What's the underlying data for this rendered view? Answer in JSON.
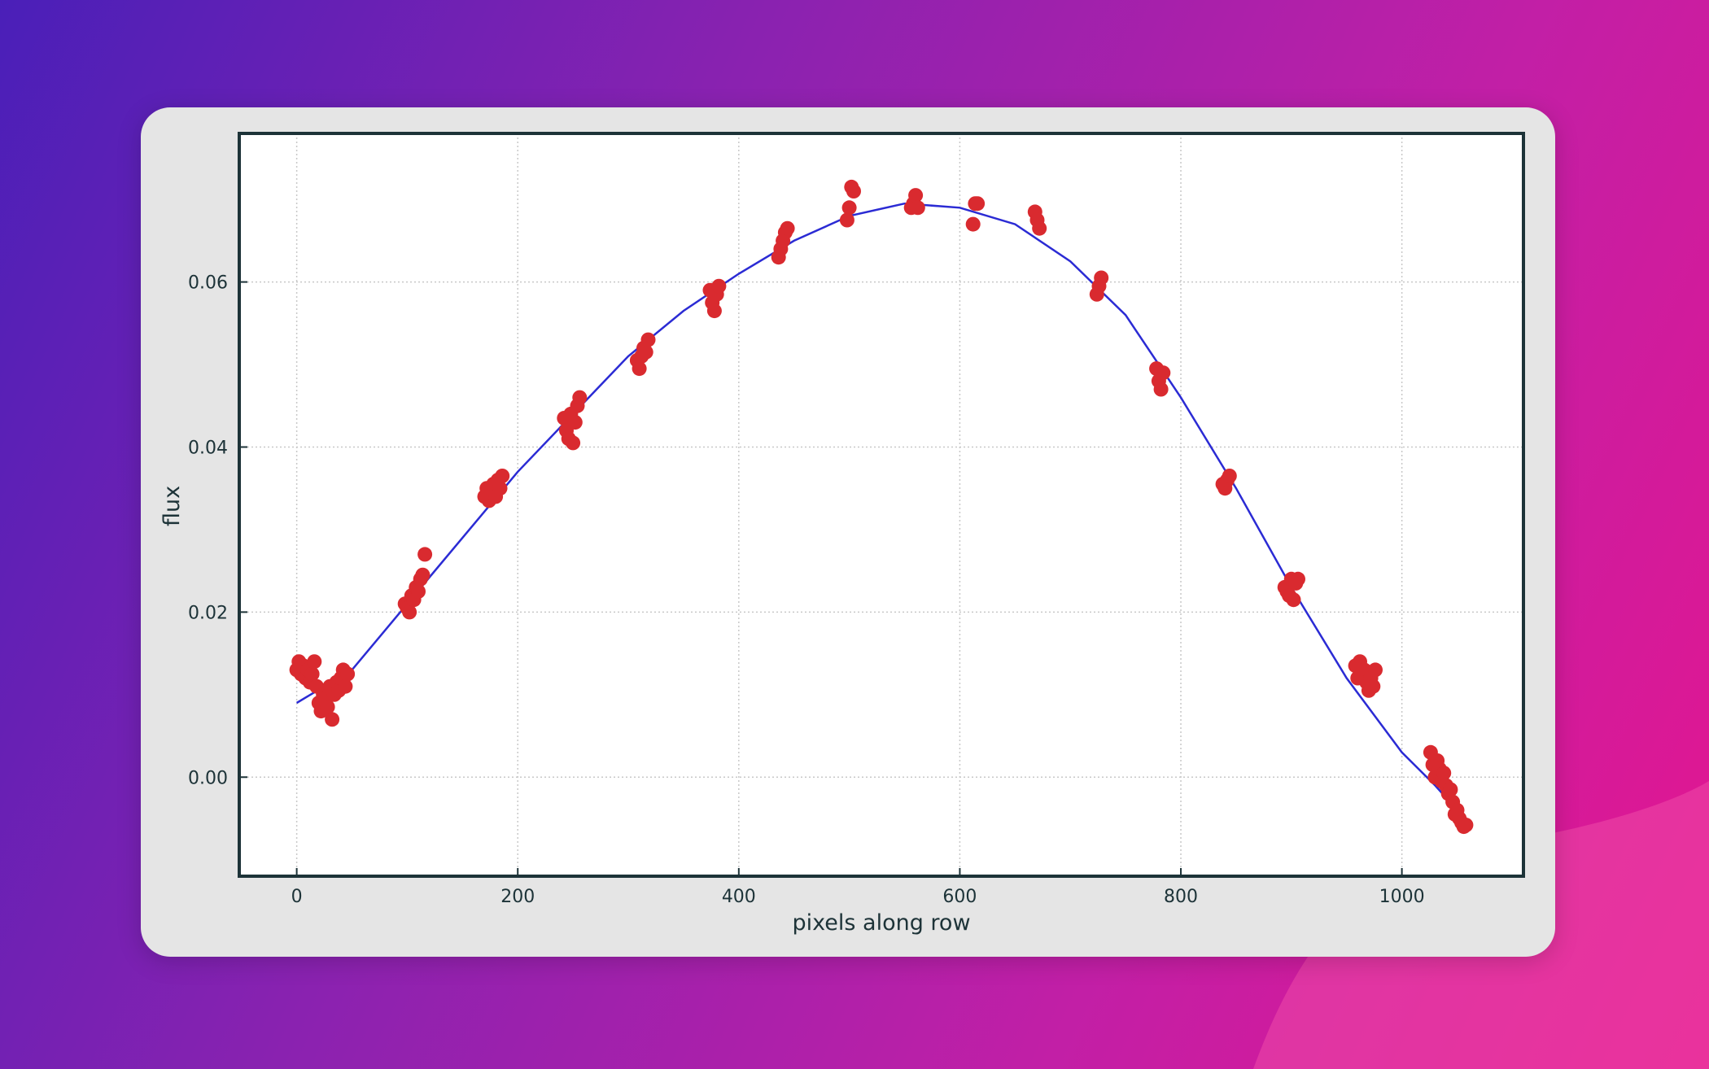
{
  "chart_data": {
    "type": "scatter",
    "title": "",
    "xlabel": "pixels along row",
    "ylabel": "flux",
    "xlim": [
      -52,
      1110
    ],
    "ylim": [
      -0.012,
      0.078
    ],
    "xticks": [
      0,
      200,
      400,
      600,
      800,
      1000
    ],
    "yticks": [
      0.0,
      0.02,
      0.04,
      0.06
    ],
    "xtick_labels": [
      "0",
      "200",
      "400",
      "600",
      "800",
      "1000"
    ],
    "ytick_labels": [
      "0.00",
      "0.02",
      "0.04",
      "0.06"
    ],
    "grid": true,
    "legend": "none",
    "colors": {
      "points": "#d92a2f",
      "fit": "#2b2bd4",
      "frame": "#1d3338",
      "grid": "#c8c8c8"
    },
    "series": [
      {
        "kind": "scatter",
        "points": [
          [
            0,
            0.013
          ],
          [
            2,
            0.014
          ],
          [
            4,
            0.0125
          ],
          [
            6,
            0.0135
          ],
          [
            8,
            0.012
          ],
          [
            10,
            0.013
          ],
          [
            12,
            0.0115
          ],
          [
            14,
            0.0125
          ],
          [
            16,
            0.014
          ],
          [
            18,
            0.011
          ],
          [
            20,
            0.009
          ],
          [
            22,
            0.008
          ],
          [
            24,
            0.01
          ],
          [
            26,
            0.0095
          ],
          [
            28,
            0.0085
          ],
          [
            30,
            0.011
          ],
          [
            32,
            0.007
          ],
          [
            34,
            0.01
          ],
          [
            36,
            0.0115
          ],
          [
            38,
            0.0105
          ],
          [
            40,
            0.012
          ],
          [
            42,
            0.013
          ],
          [
            44,
            0.011
          ],
          [
            46,
            0.0125
          ],
          [
            98,
            0.021
          ],
          [
            100,
            0.0205
          ],
          [
            102,
            0.02
          ],
          [
            104,
            0.022
          ],
          [
            106,
            0.0215
          ],
          [
            108,
            0.023
          ],
          [
            110,
            0.0225
          ],
          [
            112,
            0.024
          ],
          [
            114,
            0.0245
          ],
          [
            116,
            0.027
          ],
          [
            170,
            0.034
          ],
          [
            172,
            0.035
          ],
          [
            174,
            0.0335
          ],
          [
            176,
            0.0345
          ],
          [
            178,
            0.0355
          ],
          [
            180,
            0.034
          ],
          [
            182,
            0.036
          ],
          [
            184,
            0.035
          ],
          [
            186,
            0.0365
          ],
          [
            242,
            0.0435
          ],
          [
            244,
            0.042
          ],
          [
            246,
            0.041
          ],
          [
            248,
            0.044
          ],
          [
            250,
            0.0405
          ],
          [
            252,
            0.043
          ],
          [
            254,
            0.045
          ],
          [
            256,
            0.046
          ],
          [
            308,
            0.0505
          ],
          [
            310,
            0.0495
          ],
          [
            312,
            0.051
          ],
          [
            314,
            0.052
          ],
          [
            316,
            0.0515
          ],
          [
            318,
            0.053
          ],
          [
            374,
            0.059
          ],
          [
            376,
            0.0575
          ],
          [
            378,
            0.0565
          ],
          [
            380,
            0.0585
          ],
          [
            382,
            0.0595
          ],
          [
            436,
            0.063
          ],
          [
            438,
            0.064
          ],
          [
            440,
            0.065
          ],
          [
            442,
            0.066
          ],
          [
            444,
            0.0665
          ],
          [
            498,
            0.0675
          ],
          [
            500,
            0.069
          ],
          [
            502,
            0.0715
          ],
          [
            504,
            0.071
          ],
          [
            556,
            0.069
          ],
          [
            558,
            0.0695
          ],
          [
            560,
            0.0705
          ],
          [
            562,
            0.069
          ],
          [
            612,
            0.067
          ],
          [
            614,
            0.0695
          ],
          [
            616,
            0.0695
          ],
          [
            668,
            0.0685
          ],
          [
            670,
            0.0675
          ],
          [
            672,
            0.0665
          ],
          [
            724,
            0.0585
          ],
          [
            726,
            0.0595
          ],
          [
            728,
            0.0605
          ],
          [
            778,
            0.0495
          ],
          [
            780,
            0.048
          ],
          [
            782,
            0.047
          ],
          [
            784,
            0.049
          ],
          [
            838,
            0.0355
          ],
          [
            840,
            0.035
          ],
          [
            842,
            0.036
          ],
          [
            844,
            0.0365
          ],
          [
            894,
            0.023
          ],
          [
            896,
            0.0225
          ],
          [
            898,
            0.022
          ],
          [
            900,
            0.024
          ],
          [
            902,
            0.0215
          ],
          [
            904,
            0.0235
          ],
          [
            906,
            0.024
          ],
          [
            958,
            0.0135
          ],
          [
            960,
            0.012
          ],
          [
            962,
            0.014
          ],
          [
            964,
            0.0125
          ],
          [
            966,
            0.013
          ],
          [
            968,
            0.0115
          ],
          [
            970,
            0.0105
          ],
          [
            972,
            0.012
          ],
          [
            974,
            0.011
          ],
          [
            976,
            0.013
          ],
          [
            1026,
            0.003
          ],
          [
            1028,
            0.0015
          ],
          [
            1030,
            0.0
          ],
          [
            1032,
            0.002
          ],
          [
            1034,
            0.001
          ],
          [
            1036,
            -0.0005
          ],
          [
            1038,
            0.0005
          ],
          [
            1040,
            -0.001
          ],
          [
            1042,
            -0.002
          ],
          [
            1044,
            -0.0015
          ],
          [
            1046,
            -0.003
          ],
          [
            1048,
            -0.0045
          ],
          [
            1050,
            -0.004
          ],
          [
            1052,
            -0.005
          ],
          [
            1054,
            -0.0055
          ],
          [
            1056,
            -0.006
          ],
          [
            1058,
            -0.0058
          ]
        ]
      },
      {
        "kind": "line",
        "points": [
          [
            0,
            0.009
          ],
          [
            50,
            0.013
          ],
          [
            100,
            0.021
          ],
          [
            150,
            0.029
          ],
          [
            200,
            0.037
          ],
          [
            250,
            0.044
          ],
          [
            300,
            0.051
          ],
          [
            350,
            0.0565
          ],
          [
            400,
            0.061
          ],
          [
            450,
            0.065
          ],
          [
            500,
            0.068
          ],
          [
            550,
            0.0695
          ],
          [
            600,
            0.069
          ],
          [
            650,
            0.067
          ],
          [
            700,
            0.0625
          ],
          [
            750,
            0.056
          ],
          [
            800,
            0.046
          ],
          [
            850,
            0.035
          ],
          [
            900,
            0.023
          ],
          [
            950,
            0.012
          ],
          [
            1000,
            0.003
          ],
          [
            1030,
            -0.001
          ],
          [
            1050,
            -0.004
          ]
        ]
      }
    ]
  }
}
